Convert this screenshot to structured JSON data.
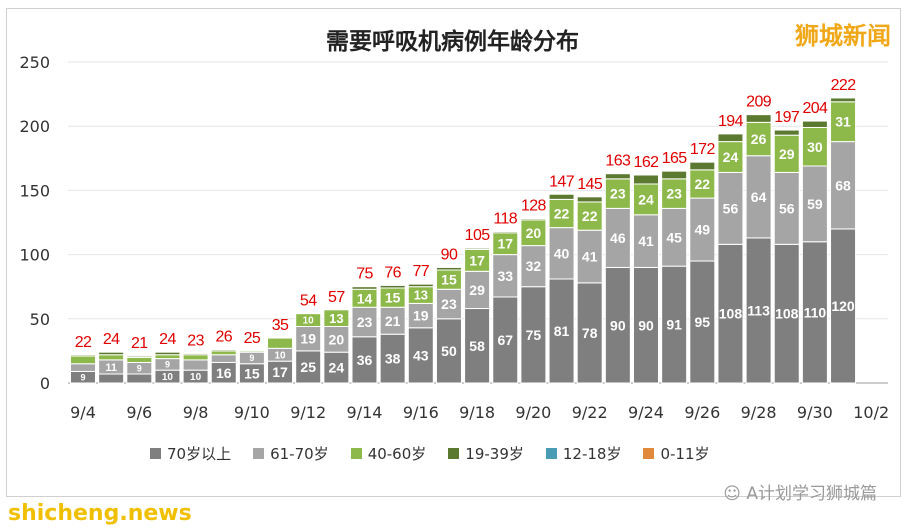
{
  "chart_data": {
    "type": "bar",
    "stacked": true,
    "title": "需要呼吸机病例年龄分布",
    "ylim": [
      0,
      250
    ],
    "yticks": [
      0,
      50,
      100,
      150,
      200,
      250
    ],
    "categories": [
      "9/4",
      "9/5",
      "9/6",
      "9/7",
      "9/8",
      "9/9",
      "9/10",
      "9/11",
      "9/12",
      "9/13",
      "9/14",
      "9/15",
      "9/16",
      "9/17",
      "9/18",
      "9/19",
      "9/20",
      "9/21",
      "9/22",
      "9/23",
      "9/24",
      "9/25",
      "9/26",
      "9/27",
      "9/28",
      "9/29",
      "9/30",
      "10/1"
    ],
    "xtick_labels": [
      "9/4",
      "9/6",
      "9/8",
      "9/10",
      "9/12",
      "9/14",
      "9/16",
      "9/18",
      "9/20",
      "9/22",
      "9/24",
      "9/26",
      "9/28",
      "9/30",
      "10/2"
    ],
    "series": [
      {
        "name": "70岁以上",
        "color": "#7f7f7f",
        "values": [
          9,
          7,
          7,
          10,
          10,
          16,
          15,
          17,
          25,
          24,
          36,
          38,
          43,
          50,
          58,
          67,
          75,
          81,
          78,
          90,
          90,
          91,
          95,
          108,
          113,
          108,
          110,
          120
        ]
      },
      {
        "name": "61-70岁",
        "color": "#a5a5a5",
        "values": [
          6,
          11,
          9,
          9,
          8,
          6,
          9,
          10,
          19,
          20,
          23,
          21,
          19,
          23,
          29,
          33,
          32,
          40,
          41,
          46,
          41,
          45,
          49,
          56,
          64,
          56,
          59,
          68
        ]
      },
      {
        "name": "40-60岁",
        "color": "#8db84a",
        "values": [
          6,
          4,
          4,
          3,
          4,
          3,
          1,
          8,
          10,
          13,
          14,
          15,
          13,
          15,
          17,
          17,
          20,
          22,
          22,
          23,
          24,
          23,
          22,
          24,
          26,
          29,
          30,
          31
        ]
      },
      {
        "name": "19-39岁",
        "color": "#5b7a2f",
        "values": [
          1,
          2,
          1,
          2,
          1,
          1,
          0,
          0,
          0,
          0,
          2,
          2,
          2,
          2,
          1,
          1,
          1,
          4,
          4,
          4,
          7,
          6,
          6,
          6,
          6,
          4,
          5,
          3
        ]
      },
      {
        "name": "12-18岁",
        "color": "#4a9cb5",
        "values": [
          0,
          0,
          0,
          0,
          0,
          0,
          0,
          0,
          0,
          0,
          0,
          0,
          0,
          0,
          0,
          0,
          0,
          0,
          0,
          0,
          0,
          0,
          0,
          0,
          0,
          0,
          0,
          0
        ]
      },
      {
        "name": "0-11岁",
        "color": "#e0893a",
        "values": [
          0,
          0,
          0,
          0,
          0,
          0,
          0,
          0,
          0,
          0,
          0,
          0,
          0,
          0,
          0,
          0,
          0,
          0,
          0,
          0,
          0,
          0,
          0,
          0,
          0,
          0,
          0,
          0
        ]
      }
    ],
    "totals": [
      22,
      24,
      21,
      24,
      23,
      26,
      25,
      35,
      54,
      57,
      75,
      76,
      77,
      90,
      105,
      118,
      128,
      147,
      145,
      163,
      162,
      165,
      172,
      194,
      209,
      197,
      204,
      222
    ],
    "total_label_color": "#e00000",
    "legend_position": "bottom",
    "grid": true
  },
  "watermark": "狮城新闻",
  "site": "shicheng.news",
  "wechat": "A计划学习狮城篇"
}
